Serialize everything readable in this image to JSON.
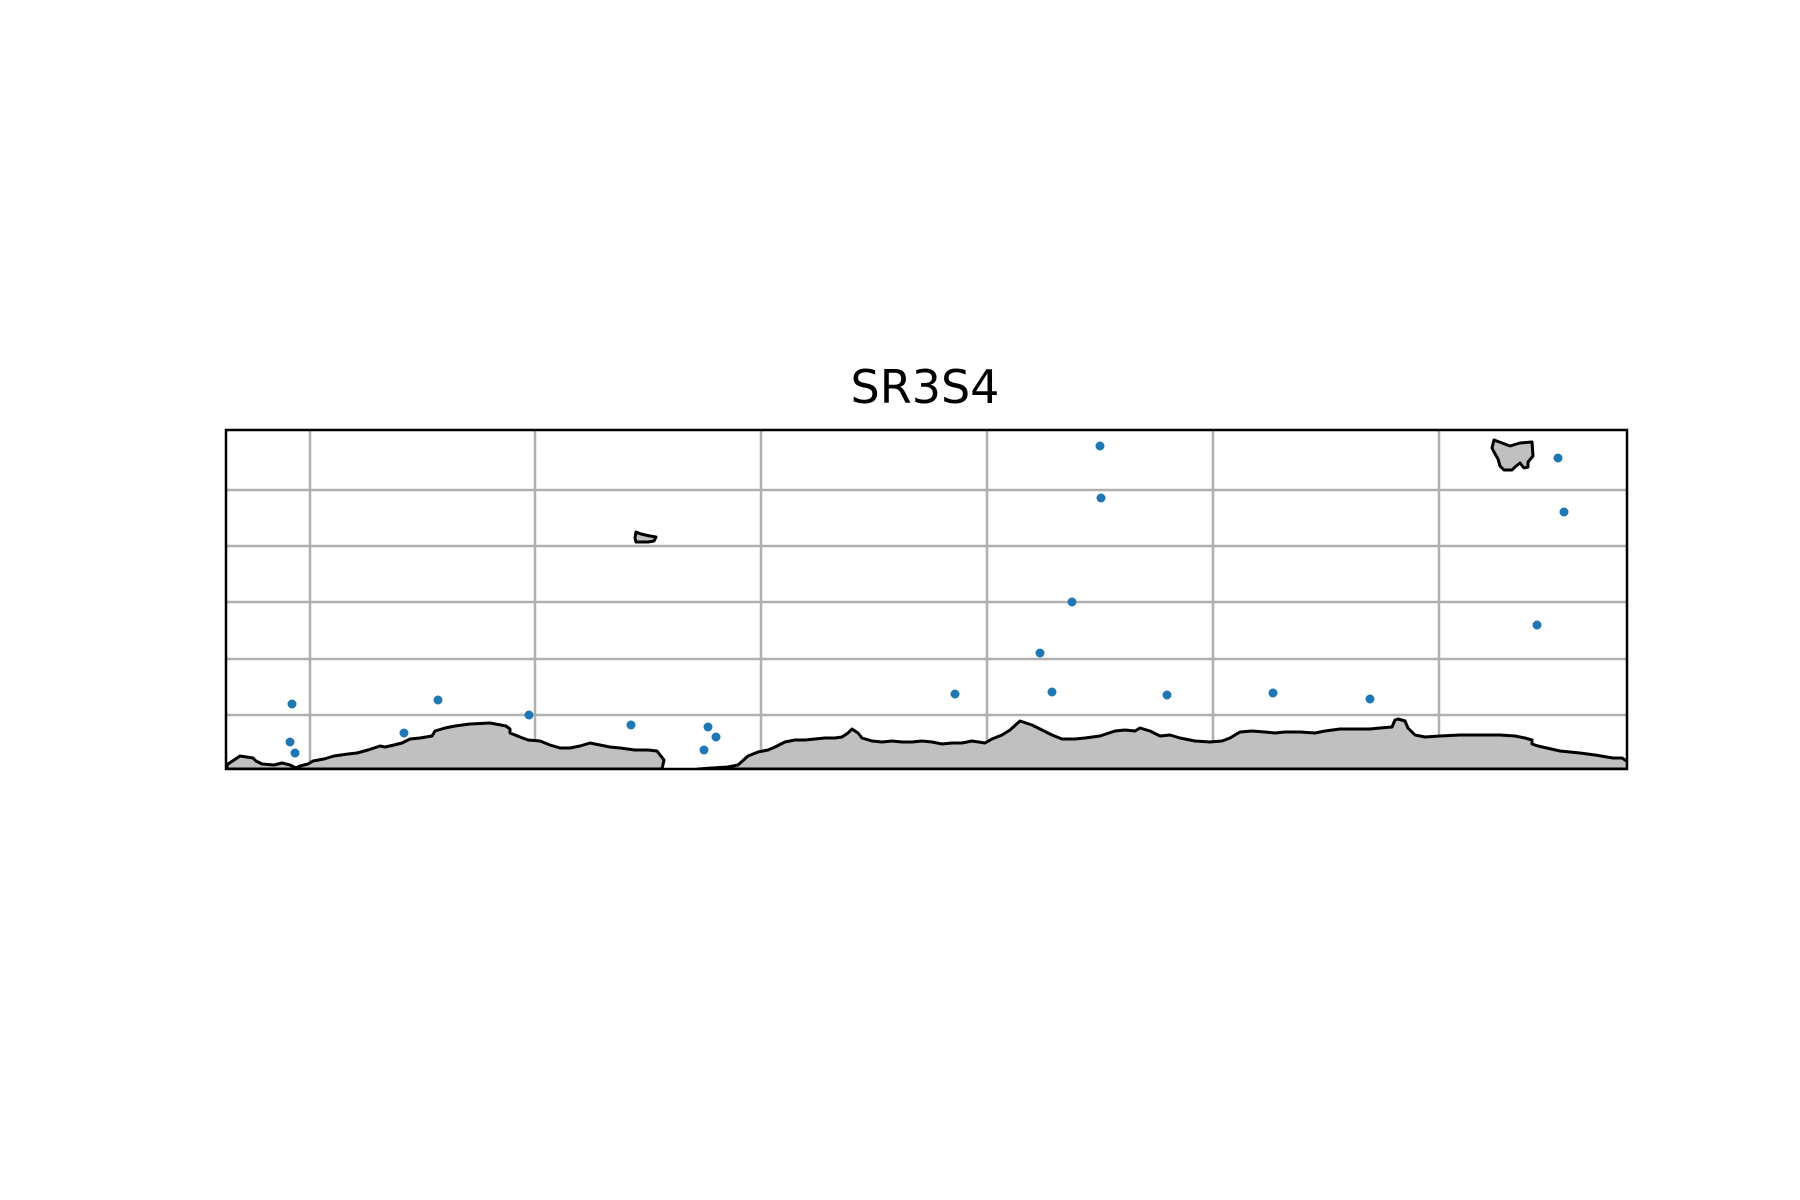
{
  "title": "SR3S4",
  "colors": {
    "marker": "#1f77b4",
    "land": "#c0c0c0",
    "grid": "#b0b0b0"
  },
  "grid": true
}
